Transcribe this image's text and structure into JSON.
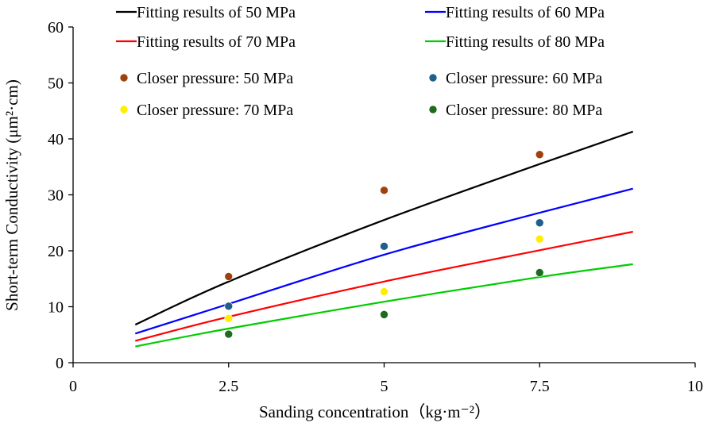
{
  "chart_data": {
    "type": "scatter",
    "title": "",
    "xlabel": "Sanding concentration（kg·m⁻²）",
    "ylabel": "Short-term Conductivity (μm²·cm)",
    "xlim": [
      0,
      10
    ],
    "ylim": [
      0,
      60
    ],
    "x_ticks": [
      0,
      2.5,
      5,
      7.5,
      10
    ],
    "x_tick_labels": [
      "0",
      "2.5",
      "5",
      "7.5",
      "10"
    ],
    "y_ticks": [
      0,
      10,
      20,
      30,
      40,
      50,
      60
    ],
    "y_tick_labels": [
      "0",
      "10",
      "20",
      "30",
      "40",
      "50",
      "60"
    ],
    "grid": false,
    "legend_position": "top",
    "fits": [
      {
        "name": "Fitting results of 50 MPa",
        "color": "#000000",
        "x": [
          1,
          2.5,
          5,
          7.5,
          9
        ],
        "y": [
          6.8,
          14.5,
          25.5,
          35.5,
          41.3
        ]
      },
      {
        "name": "Fitting results of 60 MPa",
        "color": "#0000ff",
        "x": [
          1,
          2.5,
          5,
          7.5,
          9
        ],
        "y": [
          5.2,
          10.5,
          19.3,
          26.8,
          31.1
        ]
      },
      {
        "name": "Fitting results of 70 MPa",
        "color": "#ff0000",
        "x": [
          1,
          2.5,
          5,
          7.5,
          9
        ],
        "y": [
          3.9,
          8.2,
          14.5,
          20.1,
          23.4
        ]
      },
      {
        "name": "Fitting results of 80 MPa",
        "color": "#00cc00",
        "x": [
          1,
          2.5,
          5,
          7.5,
          9
        ],
        "y": [
          2.9,
          6.1,
          10.9,
          15.3,
          17.6
        ]
      }
    ],
    "points": [
      {
        "name": "Closer pressure: 50 MPa",
        "color": "#a0410d",
        "x": [
          2.5,
          5,
          7.5
        ],
        "y": [
          15.4,
          30.8,
          37.2
        ]
      },
      {
        "name": "Closer pressure: 60 MPa",
        "color": "#1f5f8b",
        "x": [
          2.5,
          5,
          7.5
        ],
        "y": [
          10.1,
          20.8,
          25.0
        ]
      },
      {
        "name": "Closer pressure: 70 MPa",
        "color": "#ffee00",
        "x": [
          2.5,
          5,
          7.5
        ],
        "y": [
          7.9,
          12.7,
          22.1
        ]
      },
      {
        "name": "Closer pressure: 80 MPa",
        "color": "#1e6b1e",
        "x": [
          2.5,
          5,
          7.5
        ],
        "y": [
          5.1,
          8.6,
          16.1
        ]
      }
    ]
  }
}
